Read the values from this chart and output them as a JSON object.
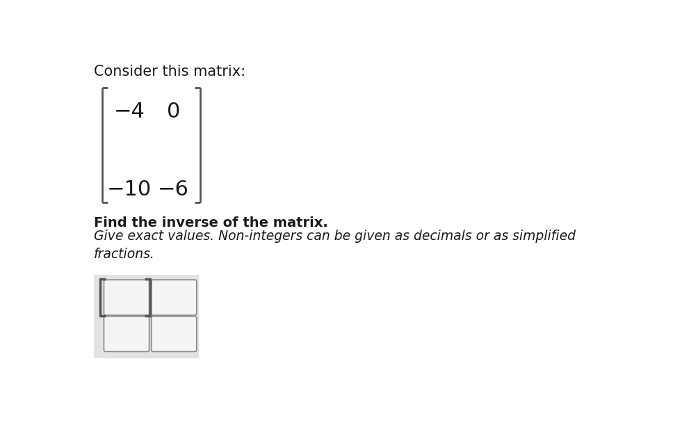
{
  "title_text": "Consider this matrix:",
  "matrix_entries": [
    "−4",
    "0",
    "−10",
    "−6"
  ],
  "bold_text": "Find the inverse of the matrix.",
  "italic_text": "Give exact values. Non-integers can be given as decimals or as simplified\nfractions.",
  "bg_color": "#ffffff",
  "text_color": "#1a1a1a",
  "font_size_title": 15,
  "font_size_matrix": 22,
  "font_size_bold": 14,
  "font_size_italic": 13.5,
  "input_box_bg": "#e2e2e2",
  "input_cell_bg": "#f5f5f5",
  "input_cell_border": "#888888",
  "bracket_color": "#555555"
}
